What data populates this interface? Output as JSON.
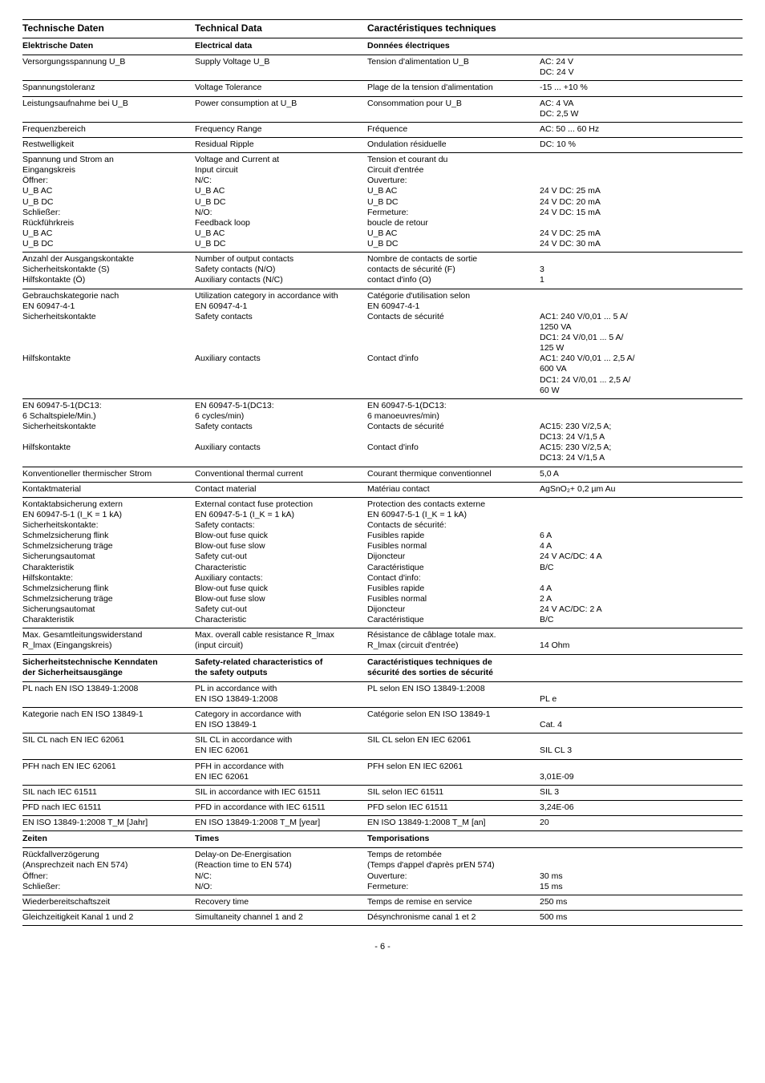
{
  "header": {
    "de": "Technische Daten",
    "en": "Technical Data",
    "fr": "Caractéristiques techniques"
  },
  "sections": [
    {
      "hdr": {
        "de": "Elektrische Daten",
        "en": "Electrical data",
        "fr": "Données électriques"
      },
      "rows": [
        {
          "de": "Versorgungsspannung U_B",
          "en": "Supply Voltage U_B",
          "fr": "Tension d'alimentation U_B",
          "val": "AC: 24 V\nDC: 24 V"
        },
        {
          "de": "Spannungstoleranz",
          "en": "Voltage Tolerance",
          "fr": "Plage de la tension d'alimentation",
          "val": "-15 ... +10 %"
        },
        {
          "de": "Leistungsaufnahme bei U_B",
          "en": "Power consumption at U_B",
          "fr": "Consommation pour U_B",
          "val": "AC: 4 VA\nDC: 2,5 W"
        },
        {
          "de": "Frequenzbereich",
          "en": "Frequency Range",
          "fr": "Fréquence",
          "val": "AC: 50 ... 60 Hz"
        },
        {
          "de": "Restwelligkeit",
          "en": "Residual Ripple",
          "fr": "Ondulation résiduelle",
          "val": "DC: 10 %"
        },
        {
          "de": "Spannung und Strom an\n  Eingangskreis\n  Öffner:\n  U_B AC\n  U_B DC\n  Schließer:\n  Rückführkreis\n  U_B AC\n  U_B DC",
          "en": "Voltage and Current at\n  Input circuit\n  N/C:\n  U_B AC\n  U_B DC\n  N/O:\n  Feedback loop\n  U_B AC\n  U_B DC",
          "fr": "Tension et courant du\n  Circuit d'entrée\n  Ouverture:\n  U_B AC\n  U_B DC\n  Fermeture:\n  boucle de retour\n  U_B AC\n  U_B DC",
          "val": "\n\n\n24 V DC: 25 mA\n24 V DC: 20 mA\n24 V DC: 15 mA\n\n24 V DC: 25 mA\n24 V DC: 30 mA"
        },
        {
          "de": "Anzahl der Ausgangskontakte\n  Sicherheitskontakte (S)\n  Hilfskontakte (Ö)",
          "en": "Number of output contacts\n  Safety contacts (N/O)\n  Auxiliary contacts (N/C)",
          "fr": "Nombre de contacts de sortie\n  contacts de sécurité (F)\n  contact d'info (O)",
          "val": "\n3\n1"
        },
        {
          "de": "Gebrauchskategorie nach\nEN 60947-4-1\n  Sicherheitskontakte\n\n\n\n  Hilfskontakte",
          "en": "Utilization category in accordance with\nEN 60947-4-1\n  Safety contacts\n\n\n\n  Auxiliary contacts",
          "fr": "Catégorie d'utilisation selon\nEN 60947-4-1\n  Contacts de sécurité\n\n\n\n  Contact d'info",
          "val": "\n\nAC1: 240 V/0,01 ... 5 A/\n1250 VA\nDC1: 24 V/0,01 ... 5 A/\n125 W\nAC1: 240 V/0,01 ... 2,5 A/\n600 VA\nDC1: 24 V/0,01 ... 2,5 A/\n60 W"
        },
        {
          "de": "EN 60947-5-1(DC13:\n6 Schaltspiele/Min.)\n  Sicherheitskontakte\n\n  Hilfskontakte",
          "en": "EN 60947-5-1(DC13:\n6 cycles/min)\n  Safety contacts\n\n  Auxiliary contacts",
          "fr": "EN 60947-5-1(DC13:\n6 manoeuvres/min)\n  Contacts de sécurité\n\n  Contact d'info",
          "val": "\n\nAC15: 230 V/2,5 A;\nDC13: 24 V/1,5 A\nAC15: 230 V/2,5 A;\nDC13: 24 V/1,5 A"
        },
        {
          "de": "Konventioneller thermischer Strom",
          "en": "Conventional thermal current",
          "fr": "Courant thermique conventionnel",
          "val": "5,0 A"
        },
        {
          "de": "Kontaktmaterial",
          "en": "Contact material",
          "fr": "Matériau contact",
          "val": "AgSnO₂+ 0,2 µm Au"
        },
        {
          "de": "Kontaktabsicherung extern\nEN 60947-5-1 (I_K = 1 kA)\n  Sicherheitskontakte:\n  Schmelzsicherung flink\n  Schmelzsicherung träge\n  Sicherungsautomat\n  Charakteristik\n  Hilfskontakte:\n  Schmelzsicherung flink\n  Schmelzsicherung träge\n  Sicherungsautomat\n  Charakteristik",
          "en": "External contact fuse protection\nEN 60947-5-1 (I_K = 1 kA)\n  Safety contacts:\n  Blow-out fuse quick\n  Blow-out fuse slow\n  Safety cut-out\n  Characteristic\n  Auxiliary contacts:\n  Blow-out fuse quick\n  Blow-out fuse slow\n  Safety cut-out\n  Characteristic",
          "fr": "Protection des contacts externe\nEN 60947-5-1 (I_K = 1 kA)\n  Contacts de sécurité:\n  Fusibles rapide\n  Fusibles normal\n  Dijoncteur\n  Caractéristique\n  Contact d'info:\n  Fusibles rapide\n  Fusibles normal\n  Dijoncteur\n  Caractéristique",
          "val": "\n\n\n6 A\n4 A\n24 V AC/DC: 4 A\nB/C\n\n4 A\n2 A\n24 V AC/DC: 2 A\nB/C"
        },
        {
          "de": "Max. Gesamtleitungswiderstand\nR_lmax (Eingangskreis)",
          "en": "Max. overall cable resistance R_lmax\n(input circuit)",
          "fr": "Résistance de câblage totale max.\nR_lmax (circuit d'entrée)",
          "val": "\n14 Ohm"
        }
      ]
    },
    {
      "hdr": {
        "de": "Sicherheitstechnische Kenndaten\nder Sicherheitsausgänge",
        "en": "Safety-related characteristics of\nthe safety outputs",
        "fr": "Caractéristiques techniques de\nsécurité des sorties de sécurité"
      },
      "rows": [
        {
          "de": "PL nach EN ISO 13849-1:2008",
          "en": "PL in accordance with\nEN ISO 13849-1:2008",
          "fr": "PL selon EN ISO 13849-1:2008",
          "val": "\nPL e"
        },
        {
          "de": "Kategorie nach EN ISO 13849-1",
          "en": "Category in accordance with\nEN ISO 13849-1",
          "fr": "Catégorie selon EN ISO 13849-1",
          "val": "\nCat. 4"
        },
        {
          "de": "SIL CL nach EN IEC 62061",
          "en": "SIL CL in accordance with\nEN IEC 62061",
          "fr": "SIL CL selon EN IEC 62061",
          "val": "\nSIL CL 3"
        },
        {
          "de": "PFH nach EN IEC 62061",
          "en": "PFH in accordance with\nEN IEC 62061",
          "fr": "PFH selon EN IEC 62061",
          "val": "\n3,01E-09"
        },
        {
          "de": "SIL nach IEC 61511",
          "en": "SIL in accordance with IEC 61511",
          "fr": "SIL selon IEC 61511",
          "val": "SIL 3"
        },
        {
          "de": "PFD nach IEC 61511",
          "en": "PFD in accordance with IEC 61511",
          "fr": "PFD selon IEC 61511",
          "val": "3,24E-06"
        },
        {
          "de": "EN ISO 13849-1:2008 T_M [Jahr]",
          "en": "EN ISO 13849-1:2008 T_M [year]",
          "fr": "EN ISO 13849-1:2008 T_M [an]",
          "val": "20"
        }
      ]
    },
    {
      "hdr": {
        "de": "Zeiten",
        "en": "Times",
        "fr": "Temporisations"
      },
      "rows": [
        {
          "de": "Rückfallverzögerung\n(Ansprechzeit nach EN 574)\n  Öffner:\n  Schließer:",
          "en": "Delay-on De-Energisation\n(Reaction time to EN 574)\n  N/C:\n  N/O:",
          "fr": "Temps de retombée\n(Temps d'appel d'après prEN 574)\n  Ouverture:\n  Fermeture:",
          "val": "\n\n30 ms\n15 ms"
        },
        {
          "de": "Wiederbereitschaftszeit",
          "en": "Recovery time",
          "fr": "Temps de remise en service",
          "val": "250 ms"
        },
        {
          "de": "Gleichzeitigkeit Kanal 1 und 2",
          "en": "Simultaneity channel 1 and 2",
          "fr": "Désynchronisme canal 1 et 2",
          "val": "500 ms"
        }
      ]
    }
  ],
  "pagenum": "- 6 -"
}
